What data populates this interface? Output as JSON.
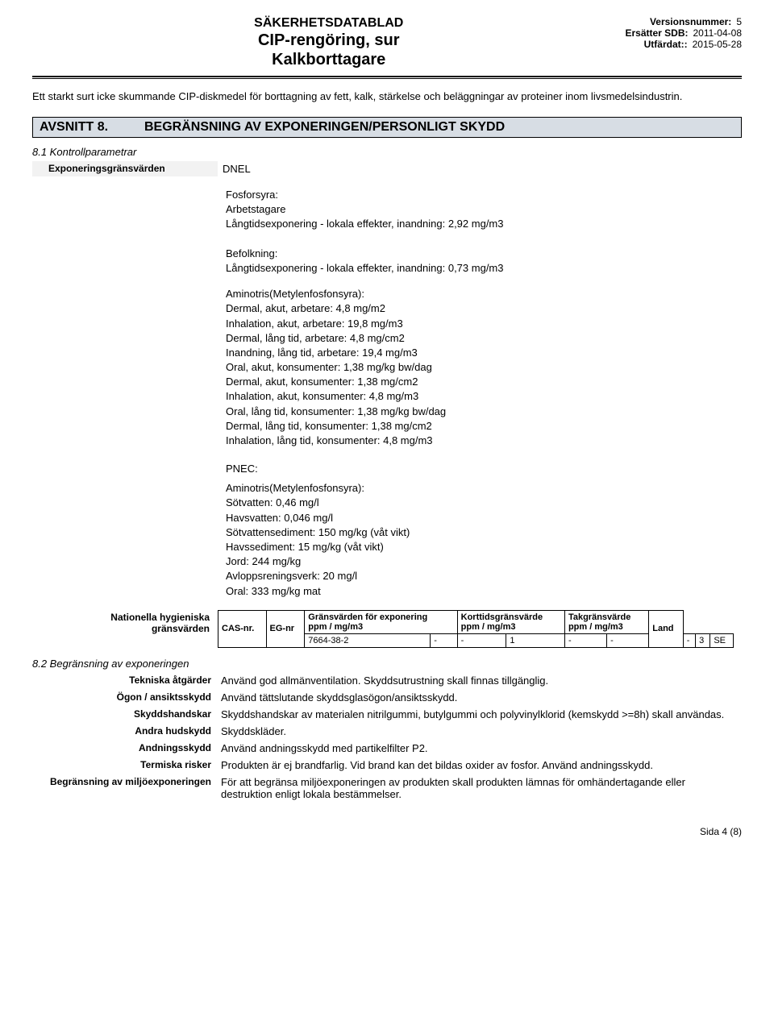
{
  "header": {
    "super": "SÄKERHETSDATABLAD",
    "title_l1": "CIP-rengöring, sur",
    "title_l2": "Kalkborttagare",
    "meta": {
      "version_label": "Versionsnummer:",
      "version_value": "5",
      "replaces_label": "Ersätter SDB:",
      "replaces_value": "2011-04-08",
      "issued_label": "Utfärdat::",
      "issued_value": "2015-05-28"
    }
  },
  "intro": "Ett starkt surt icke skummande CIP-diskmedel för borttagning av fett, kalk, stärkelse och beläggningar av proteiner inom livsmedelsindustrin.",
  "section8": {
    "num": "AVSNITT 8.",
    "title": "BEGRÄNSNING AV EXPONERINGEN/PERSONLIGT SKYDD",
    "s81_head": "8.1 Kontrollparametrar",
    "exposure_label": "Exponeringsgränsvärden",
    "exposure_value": "DNEL",
    "block1": {
      "h1": "Fosforsyra:",
      "h2": "Arbetstagare",
      "l1": "Långtidsexponering - lokala effekter, inandning: 2,92 mg/m3",
      "h3": "Befolkning:",
      "l2": "Långtidsexponering - lokala effekter, inandning: 0,73 mg/m3"
    },
    "block2": {
      "h": "Aminotris(Metylenfosfonsyra):",
      "lines": [
        "Dermal, akut, arbetare: 4,8 mg/m2",
        "Inhalation, akut, arbetare: 19,8 mg/m3",
        "Dermal, lång tid, arbetare: 4,8 mg/cm2",
        "Inandning, lång tid, arbetare: 19,4 mg/m3",
        "Oral, akut, konsumenter: 1,38 mg/kg bw/dag",
        "Dermal, akut, konsumenter: 1,38 mg/cm2",
        "Inhalation, akut, konsumenter: 4,8 mg/m3",
        "Oral, lång tid, konsumenter: 1,38 mg/kg bw/dag",
        "Dermal, lång tid, konsumenter: 1,38 mg/cm2",
        "Inhalation, lång tid, konsumenter: 4,8 mg/m3"
      ]
    },
    "pnec_label": "PNEC:",
    "block3": {
      "h": "Aminotris(Metylenfosfonsyra):",
      "lines": [
        "Sötvatten: 0,46 mg/l",
        "Havsvatten: 0,046 mg/l",
        "Sötvattensediment: 150 mg/kg (våt vikt)",
        "Havssediment: 15 mg/kg (våt vikt)",
        "Jord: 244 mg/kg",
        "Avloppsreningsverk: 20 mg/l",
        "Oral: 333 mg/kg mat"
      ]
    },
    "nat_label_l1": "Nationella  hygieniska",
    "nat_label_l2": "gränsvärden",
    "table": {
      "headers": {
        "cas": "CAS-nr.",
        "eg": "EG-nr",
        "exp_top": "Gränsvärden för exponering",
        "unit": "ppm / mg/m3",
        "short_top": "Korttidsgränsvärde",
        "ceil_top": "Takgränsvärde",
        "land": "Land"
      },
      "row": {
        "cas": "7664-38-2",
        "eg": "-",
        "exp_ppm": "-",
        "exp_mg": "1",
        "short_ppm": "-",
        "short_mg": "-",
        "ceil_ppm": "-",
        "ceil_mg": "3",
        "land": "SE"
      }
    },
    "s82_head": "8.2 Begränsning av exponeringen",
    "rows82": [
      {
        "label": "Tekniska åtgärder",
        "value": "Använd god allmänventilation. Skyddsutrustning skall finnas tillgänglig."
      },
      {
        "label": "Ögon / ansiktsskydd",
        "value": "Använd tättslutande skyddsglasögon/ansiktsskydd."
      },
      {
        "label": "Skyddshandskar",
        "value": "Skyddshandskar av materialen nitrilgummi, butylgummi och polyvinylklorid (kemskydd >=8h) skall användas."
      },
      {
        "label": "Andra hudskydd",
        "value": "Skyddskläder."
      },
      {
        "label": "Andningsskydd",
        "value": "Använd andningsskydd med partikelfilter P2."
      },
      {
        "label": "Termiska risker",
        "value": "Produkten är ej brandfarlig. Vid brand kan det bildas oxider av fosfor. Använd andningsskydd."
      },
      {
        "label": "Begränsning av miljöexponeringen",
        "value": "För att begränsa miljöexponeringen av produkten skall produkten lämnas för omhändertagande eller destruktion enligt lokala bestämmelser."
      }
    ]
  },
  "footer": "Sida 4 (8)"
}
